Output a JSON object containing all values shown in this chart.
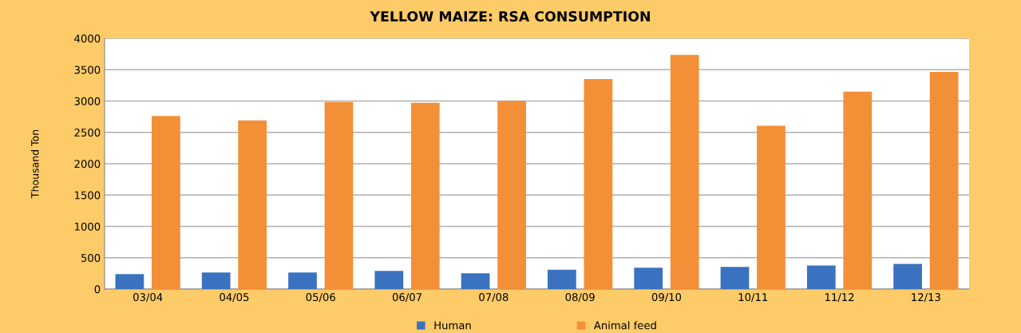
{
  "chart_data": {
    "type": "bar",
    "title": "YELLOW MAIZE: RSA CONSUMPTION",
    "ylabel": "Thousand Ton",
    "categories": [
      "03/04",
      "04/05",
      "05/06",
      "06/07",
      "07/08",
      "08/09",
      "09/10",
      "10/11",
      "11/12",
      "12/13"
    ],
    "series": [
      {
        "name": "Human",
        "color": "#3a72c0",
        "values": [
          240,
          265,
          265,
          290,
          250,
          310,
          340,
          355,
          375,
          400
        ]
      },
      {
        "name": "Animal feed",
        "color": "#f38f37",
        "values": [
          2760,
          2690,
          2985,
          2970,
          3000,
          3350,
          3735,
          2605,
          3150,
          3465
        ]
      }
    ],
    "ylim": [
      0,
      4000
    ],
    "yticks": [
      0,
      500,
      1000,
      1500,
      2000,
      2500,
      3000,
      3500,
      4000
    ],
    "grid": "y",
    "legend": "bottom"
  }
}
